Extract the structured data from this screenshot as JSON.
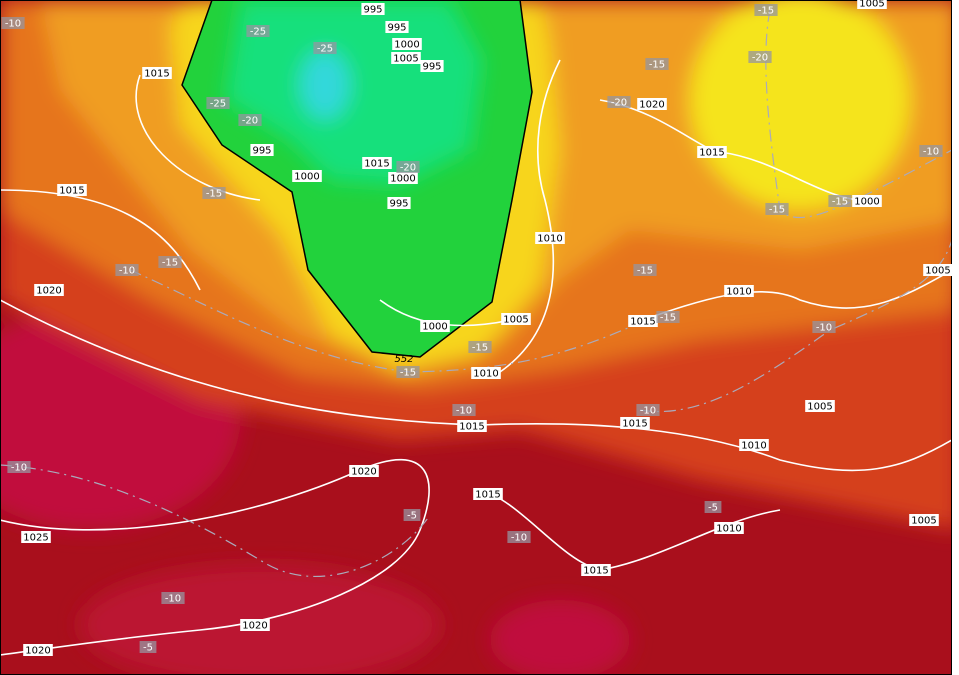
{
  "map": {
    "isobar_labels": [
      "995",
      "995",
      "1000",
      "1005",
      "995",
      "1015",
      "1020",
      "995",
      "1015",
      "1015",
      "1000",
      "1000",
      "995",
      "1015",
      "1000",
      "1010",
      "1005",
      "1020",
      "1010",
      "1005",
      "1015",
      "1000",
      "1010",
      "1015",
      "1015",
      "1005",
      "1010",
      "1020",
      "1015",
      "1005",
      "1010",
      "1025",
      "1015",
      "1020",
      "1020",
      "1005"
    ],
    "temperature_labels": [
      "-25",
      "-25",
      "-25",
      "-20",
      "-15",
      "-10",
      "-15",
      "-15",
      "-15",
      "-20",
      "-15",
      "-10",
      "-15",
      "-15",
      "-15",
      "-15",
      "-10",
      "-15",
      "-20",
      "-10",
      "-10",
      "-5",
      "-5",
      "-10",
      "-10",
      "-10",
      "-5",
      "-10",
      "-20"
    ],
    "thickness_label": "552"
  }
}
